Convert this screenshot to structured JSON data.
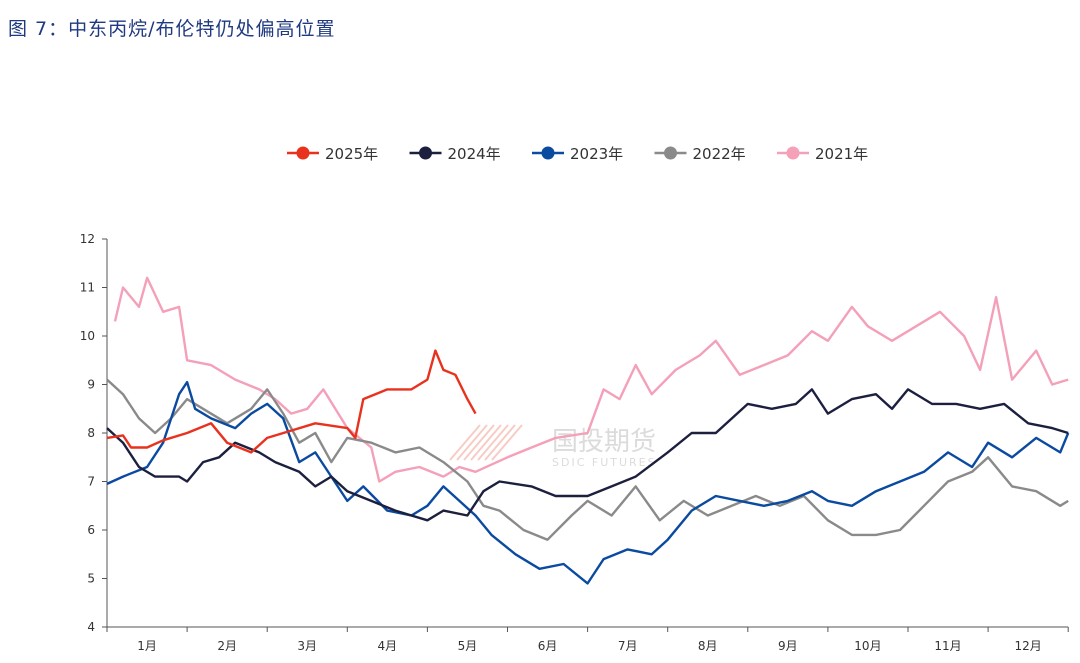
{
  "title": "图 7：中东丙烷/布伦特仍处偏高位置",
  "watermark": {
    "cn": "国投期货",
    "en": "SDIC FUTURES"
  },
  "chart_data": {
    "type": "line",
    "title": "中东丙烷/布伦特仍处偏高位置",
    "xlabel": "",
    "ylabel": "",
    "x_unit": "month (0=start of 1月, 12=end of 12月)",
    "ylim": [
      4,
      12
    ],
    "yticks": [
      "4",
      "5",
      "6",
      "7",
      "8",
      "9",
      "10",
      "11",
      "12"
    ],
    "xtick_labels": [
      "1月",
      "2月",
      "3月",
      "4月",
      "5月",
      "6月",
      "7月",
      "8月",
      "9月",
      "10月",
      "11月",
      "12月"
    ],
    "grid": false,
    "legend_position": "top",
    "series": [
      {
        "name": "2025年",
        "color": "#e8321e",
        "x": [
          0,
          0.2,
          0.3,
          0.5,
          0.7,
          1.0,
          1.3,
          1.5,
          1.8,
          2.0,
          2.3,
          2.6,
          3.0,
          3.1,
          3.2,
          3.5,
          3.8,
          4.0,
          4.1,
          4.2,
          4.35,
          4.5,
          4.6
        ],
        "y": [
          7.9,
          7.95,
          7.7,
          7.7,
          7.85,
          8.0,
          8.2,
          7.8,
          7.6,
          7.9,
          8.05,
          8.2,
          8.1,
          7.9,
          8.7,
          8.9,
          8.9,
          9.1,
          9.7,
          9.3,
          9.2,
          8.7,
          8.4
        ]
      },
      {
        "name": "2024年",
        "color": "#1c1f3e",
        "x": [
          0,
          0.2,
          0.4,
          0.6,
          0.9,
          1.0,
          1.2,
          1.4,
          1.6,
          1.9,
          2.1,
          2.4,
          2.6,
          2.8,
          3.0,
          3.3,
          3.6,
          4.0,
          4.2,
          4.5,
          4.7,
          4.9,
          5.3,
          5.6,
          6.0,
          6.3,
          6.6,
          7.0,
          7.3,
          7.6,
          8.0,
          8.3,
          8.6,
          8.8,
          9.0,
          9.3,
          9.6,
          9.8,
          10.0,
          10.3,
          10.6,
          10.9,
          11.2,
          11.5,
          11.8,
          12.0
        ],
        "y": [
          8.1,
          7.8,
          7.3,
          7.1,
          7.1,
          7.0,
          7.4,
          7.5,
          7.8,
          7.6,
          7.4,
          7.2,
          6.9,
          7.1,
          6.8,
          6.6,
          6.4,
          6.2,
          6.4,
          6.3,
          6.8,
          7.0,
          6.9,
          6.7,
          6.7,
          6.9,
          7.1,
          7.6,
          8.0,
          8.0,
          8.6,
          8.5,
          8.6,
          8.9,
          8.4,
          8.7,
          8.8,
          8.5,
          8.9,
          8.6,
          8.6,
          8.5,
          8.6,
          8.2,
          8.1,
          8.0
        ]
      },
      {
        "name": "2023年",
        "color": "#0a4aa0",
        "x": [
          0,
          0.2,
          0.5,
          0.7,
          0.9,
          1.0,
          1.1,
          1.3,
          1.6,
          1.8,
          2.0,
          2.2,
          2.4,
          2.6,
          2.8,
          3.0,
          3.2,
          3.5,
          3.8,
          4.0,
          4.2,
          4.4,
          4.6,
          4.8,
          5.1,
          5.4,
          5.7,
          6.0,
          6.2,
          6.5,
          6.8,
          7.0,
          7.3,
          7.6,
          7.9,
          8.2,
          8.5,
          8.8,
          9.0,
          9.3,
          9.6,
          9.9,
          10.2,
          10.5,
          10.8,
          11.0,
          11.3,
          11.6,
          11.9,
          12.0
        ],
        "y": [
          6.95,
          7.1,
          7.3,
          7.8,
          8.8,
          9.05,
          8.5,
          8.3,
          8.1,
          8.4,
          8.6,
          8.3,
          7.4,
          7.6,
          7.1,
          6.6,
          6.9,
          6.4,
          6.3,
          6.5,
          6.9,
          6.6,
          6.3,
          5.9,
          5.5,
          5.2,
          5.3,
          4.9,
          5.4,
          5.6,
          5.5,
          5.8,
          6.4,
          6.7,
          6.6,
          6.5,
          6.6,
          6.8,
          6.6,
          6.5,
          6.8,
          7.0,
          7.2,
          7.6,
          7.3,
          7.8,
          7.5,
          7.9,
          7.6,
          8.0
        ]
      },
      {
        "name": "2022年",
        "color": "#8a8a8a",
        "x": [
          0,
          0.2,
          0.4,
          0.6,
          0.8,
          1.0,
          1.2,
          1.5,
          1.8,
          2.0,
          2.2,
          2.4,
          2.6,
          2.8,
          3.0,
          3.3,
          3.6,
          3.9,
          4.2,
          4.5,
          4.7,
          4.9,
          5.2,
          5.5,
          5.8,
          6.0,
          6.3,
          6.6,
          6.9,
          7.2,
          7.5,
          7.8,
          8.1,
          8.4,
          8.7,
          9.0,
          9.3,
          9.6,
          9.9,
          10.2,
          10.5,
          10.8,
          11.0,
          11.3,
          11.6,
          11.9,
          12.0
        ],
        "y": [
          9.1,
          8.8,
          8.3,
          8.0,
          8.3,
          8.7,
          8.5,
          8.2,
          8.5,
          8.9,
          8.4,
          7.8,
          8.0,
          7.4,
          7.9,
          7.8,
          7.6,
          7.7,
          7.4,
          7.0,
          6.5,
          6.4,
          6.0,
          5.8,
          6.3,
          6.6,
          6.3,
          6.9,
          6.2,
          6.6,
          6.3,
          6.5,
          6.7,
          6.5,
          6.7,
          6.2,
          5.9,
          5.9,
          6.0,
          6.5,
          7.0,
          7.2,
          7.5,
          6.9,
          6.8,
          6.5,
          6.6
        ]
      },
      {
        "name": "2021年",
        "color": "#f4a0b8",
        "x": [
          0.1,
          0.2,
          0.4,
          0.5,
          0.7,
          0.9,
          1.0,
          1.3,
          1.6,
          1.9,
          2.1,
          2.3,
          2.5,
          2.7,
          3.0,
          3.3,
          3.4,
          3.6,
          3.9,
          4.2,
          4.4,
          4.6,
          5.0,
          5.3,
          5.6,
          6.0,
          6.2,
          6.4,
          6.6,
          6.8,
          7.1,
          7.4,
          7.6,
          7.9,
          8.2,
          8.5,
          8.8,
          9.0,
          9.3,
          9.5,
          9.8,
          10.1,
          10.4,
          10.7,
          10.9,
          11.1,
          11.3,
          11.6,
          11.8,
          12.0
        ],
        "y": [
          10.3,
          11.0,
          10.6,
          11.2,
          10.5,
          10.6,
          9.5,
          9.4,
          9.1,
          8.9,
          8.7,
          8.4,
          8.5,
          8.9,
          8.1,
          7.7,
          7.0,
          7.2,
          7.3,
          7.1,
          7.3,
          7.2,
          7.5,
          7.7,
          7.9,
          8.0,
          8.9,
          8.7,
          9.4,
          8.8,
          9.3,
          9.6,
          9.9,
          9.2,
          9.4,
          9.6,
          10.1,
          9.9,
          10.6,
          10.2,
          9.9,
          10.2,
          10.5,
          10.0,
          9.3,
          10.8,
          9.1,
          9.7,
          9.0,
          9.1
        ]
      }
    ]
  }
}
